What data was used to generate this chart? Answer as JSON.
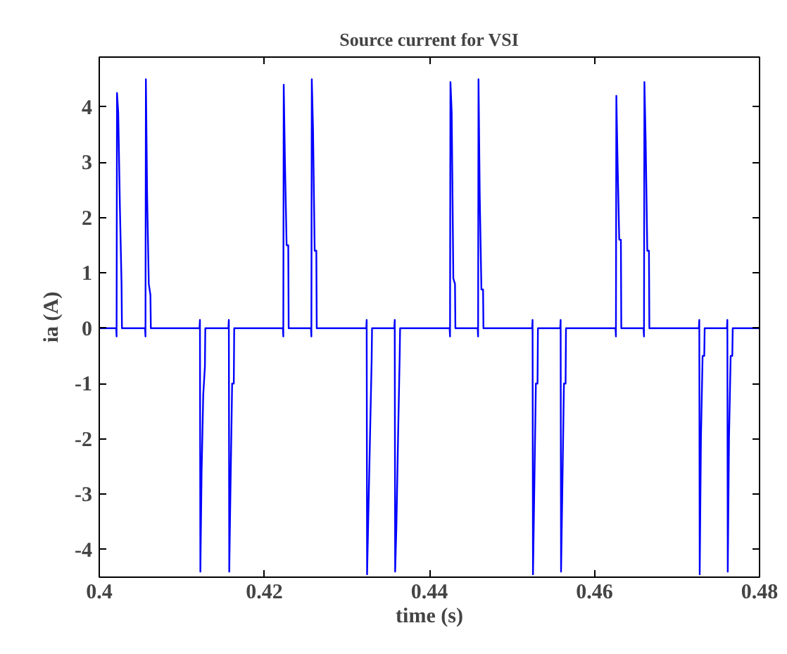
{
  "chart_data": {
    "type": "line",
    "title": "Source current for VSI",
    "xlabel": "time (s)",
    "ylabel": "ia (A)",
    "xlim": [
      0.4,
      0.48
    ],
    "xticks": [
      0.4,
      0.42,
      0.44,
      0.46,
      0.48
    ],
    "ylim": [
      -4.5,
      4.9
    ],
    "yticks": [
      -4,
      -3,
      -2,
      -1,
      0,
      1,
      2,
      3,
      4
    ],
    "grid": false,
    "series": [
      {
        "color": "#0000ff",
        "x": [
          0.4,
          0.40205,
          0.4021,
          0.40215,
          0.4023,
          0.4025,
          0.4027,
          0.40275,
          0.40555,
          0.4056,
          0.40565,
          0.4058,
          0.406,
          0.4062,
          0.40625,
          0.41215,
          0.4122,
          0.41225,
          0.4124,
          0.4126,
          0.4128,
          0.41285,
          0.41565,
          0.4157,
          0.41575,
          0.4159,
          0.4161,
          0.4163,
          0.41635,
          0.42225,
          0.4223,
          0.42235,
          0.4225,
          0.4227,
          0.4229,
          0.42295,
          0.42565,
          0.4257,
          0.42575,
          0.4259,
          0.4261,
          0.4263,
          0.42635,
          0.43235,
          0.4324,
          0.43245,
          0.4326,
          0.4328,
          0.433,
          0.43305,
          0.43575,
          0.4358,
          0.43585,
          0.436,
          0.4362,
          0.4364,
          0.43645,
          0.44245,
          0.4425,
          0.44255,
          0.4427,
          0.4429,
          0.4431,
          0.44315,
          0.44585,
          0.4459,
          0.44595,
          0.4461,
          0.4463,
          0.4465,
          0.44655,
          0.45245,
          0.4525,
          0.45255,
          0.4527,
          0.4529,
          0.4531,
          0.45315,
          0.45585,
          0.4559,
          0.45595,
          0.4561,
          0.4563,
          0.4565,
          0.45655,
          0.46255,
          0.4626,
          0.46265,
          0.4628,
          0.463,
          0.4632,
          0.46325,
          0.46595,
          0.466,
          0.46605,
          0.4662,
          0.4664,
          0.4666,
          0.46665,
          0.47265,
          0.4727,
          0.47275,
          0.4729,
          0.4731,
          0.4733,
          0.47335,
          0.47605,
          0.4761,
          0.47615,
          0.4763,
          0.4765,
          0.4767,
          0.47675,
          0.48
        ],
        "values": [
          0,
          0,
          -0.15,
          4.25,
          3.9,
          2.2,
          0.8,
          0,
          0,
          -0.15,
          4.5,
          2.4,
          0.8,
          0.6,
          0,
          0,
          0.15,
          -4.4,
          -2.6,
          -1.2,
          -0.7,
          0,
          0,
          0.15,
          -4.4,
          -2.9,
          -1.0,
          -1.0,
          0,
          0,
          -0.15,
          4.4,
          3.0,
          1.5,
          1.5,
          0,
          0,
          -0.15,
          4.5,
          3.6,
          1.4,
          1.4,
          0,
          0,
          0.15,
          -4.45,
          -3.4,
          -2.0,
          -0.6,
          0,
          0,
          0.15,
          -4.4,
          -3.6,
          -2.0,
          -0.5,
          0,
          0,
          -0.15,
          4.45,
          3.9,
          0.9,
          0.8,
          0,
          0,
          -0.15,
          4.5,
          2.4,
          0.7,
          0.7,
          0,
          0,
          0.15,
          -4.45,
          -3.0,
          -1.0,
          -1.0,
          0,
          0,
          0.15,
          -4.4,
          -3.0,
          -1.0,
          -1.0,
          0,
          0,
          -0.15,
          4.2,
          3.0,
          1.6,
          1.6,
          0,
          0,
          -0.15,
          4.45,
          3.4,
          1.4,
          1.4,
          0,
          0,
          0.15,
          -4.45,
          -2.0,
          -0.5,
          -0.5,
          0,
          0,
          0.15,
          -4.4,
          -2.0,
          -0.5,
          -0.5,
          0,
          0
        ]
      }
    ]
  }
}
